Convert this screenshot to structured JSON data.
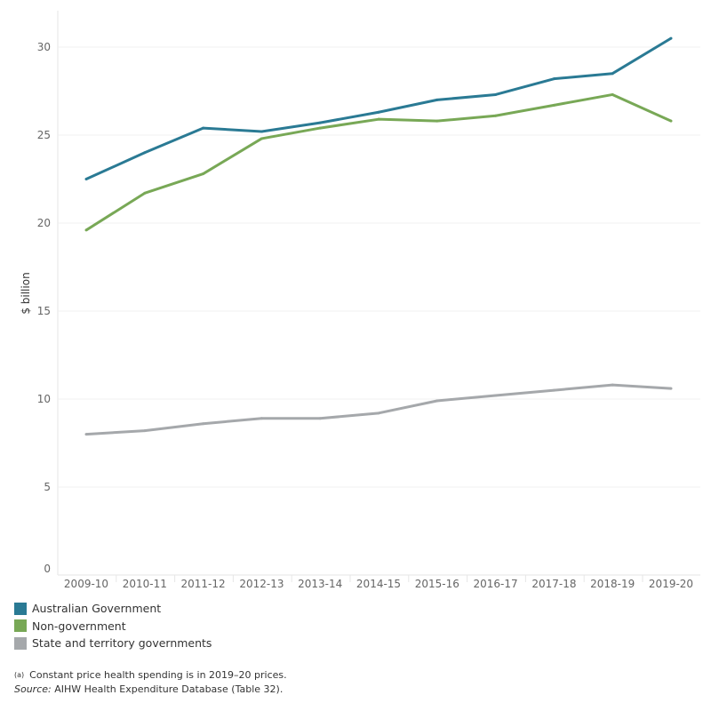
{
  "chart_data": {
    "type": "line",
    "ylabel": "$ billion",
    "xlabel": "",
    "categories": [
      "2009-10",
      "2010-11",
      "2011-12",
      "2012-13",
      "2013-14",
      "2014-15",
      "2015-16",
      "2016-17",
      "2017-18",
      "2018-19",
      "2019-20"
    ],
    "ylim": [
      0,
      32
    ],
    "yticks": [
      0,
      5,
      10,
      15,
      20,
      25,
      30
    ],
    "grid": true,
    "legend_position": "bottom-left",
    "series": [
      {
        "name": "Australian Government",
        "color": "#2a7a94",
        "values": [
          22.5,
          24.0,
          25.4,
          25.2,
          25.7,
          26.3,
          27.0,
          27.3,
          28.2,
          28.5,
          30.5
        ]
      },
      {
        "name": "Non-government",
        "color": "#78a856",
        "values": [
          19.6,
          21.7,
          22.8,
          24.8,
          25.4,
          25.9,
          25.8,
          26.1,
          26.7,
          27.3,
          25.8
        ]
      },
      {
        "name": "State and territory governments",
        "color": "#a5a8ab",
        "values": [
          8.0,
          8.2,
          8.6,
          8.9,
          8.9,
          9.2,
          9.9,
          10.2,
          10.5,
          10.8,
          10.6
        ]
      }
    ]
  },
  "notes": {
    "footnote_marker": "(a)",
    "footnote": "Constant price health spending is in 2019–20 prices.",
    "source_label": "Source:",
    "source": " AIHW Health Expenditure Database (Table 32)."
  }
}
